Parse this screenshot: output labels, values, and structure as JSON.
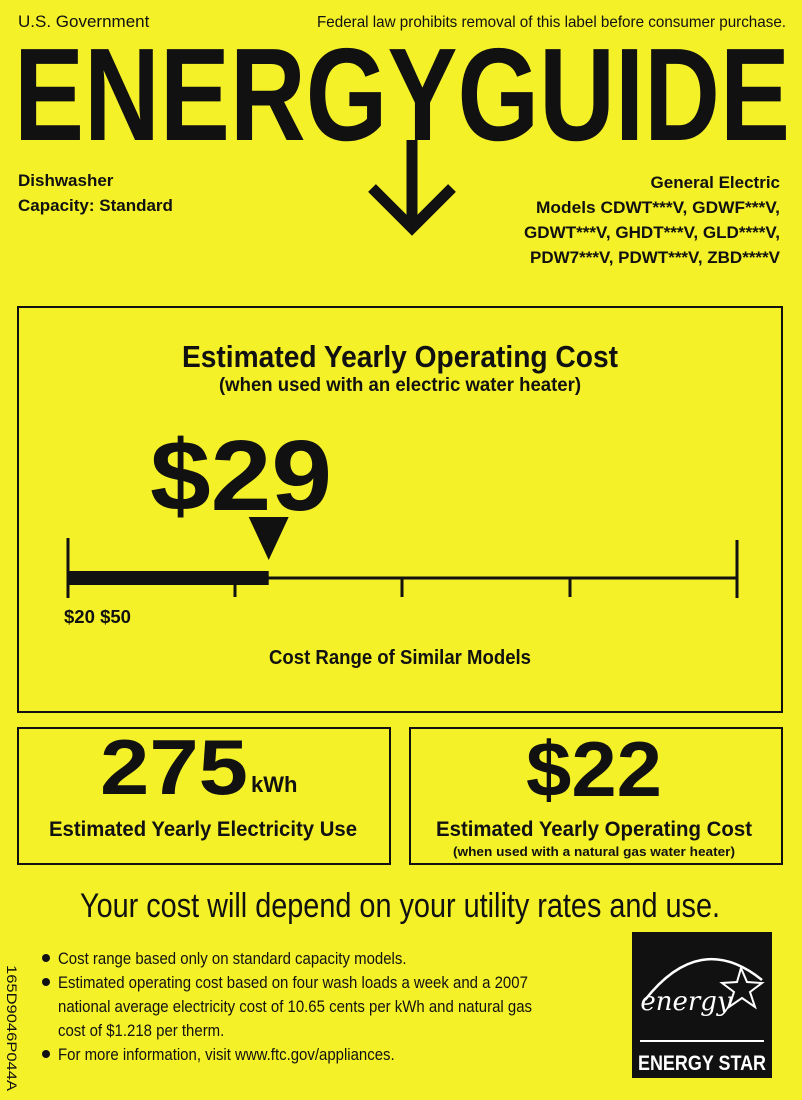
{
  "header": {
    "left": "U.S. Government",
    "right": "Federal law prohibits removal of this label before consumer purchase.",
    "logo": "ENERGYGUIDE"
  },
  "product": {
    "type": "Dishwasher",
    "capacity": "Capacity: Standard"
  },
  "manufacturer": {
    "name": "General Electric",
    "models": [
      "Models  CDWT***V, GDWF***V,",
      "GDWT***V, GHDT***V, GLD****V,",
      "PDW7***V, PDWT***V, ZBD****V"
    ]
  },
  "cost": {
    "title": "Estimated Yearly Operating Cost",
    "subtitle": "(when used with an electric water heater)",
    "label": "$29",
    "value": 29,
    "range_label": "$20 $50",
    "range_min": 20,
    "range_max": 50,
    "range_caption": "Cost Range of Similar Models"
  },
  "electricity": {
    "value": 275,
    "unit": "kWh",
    "caption": "Estimated Yearly Electricity Use"
  },
  "gas_cost": {
    "label": "$22",
    "caption": "Estimated Yearly Operating Cost",
    "subcaption": "(when used with a natural gas water heater)"
  },
  "note": "Your cost will depend on your utility rates and use.",
  "bullets": [
    [
      "Cost range based only on standard capacity models."
    ],
    [
      "Estimated operating cost based on four wash loads a week and a 2007",
      "national average electricity cost of 10.65 cents per kWh and natural gas",
      "cost of $1.218 per therm."
    ],
    [
      "For more information, visit www.ftc.gov/appliances."
    ]
  ],
  "logo": {
    "script": "energy",
    "name": "ENERGY STAR"
  },
  "code": "165D9046P044A"
}
